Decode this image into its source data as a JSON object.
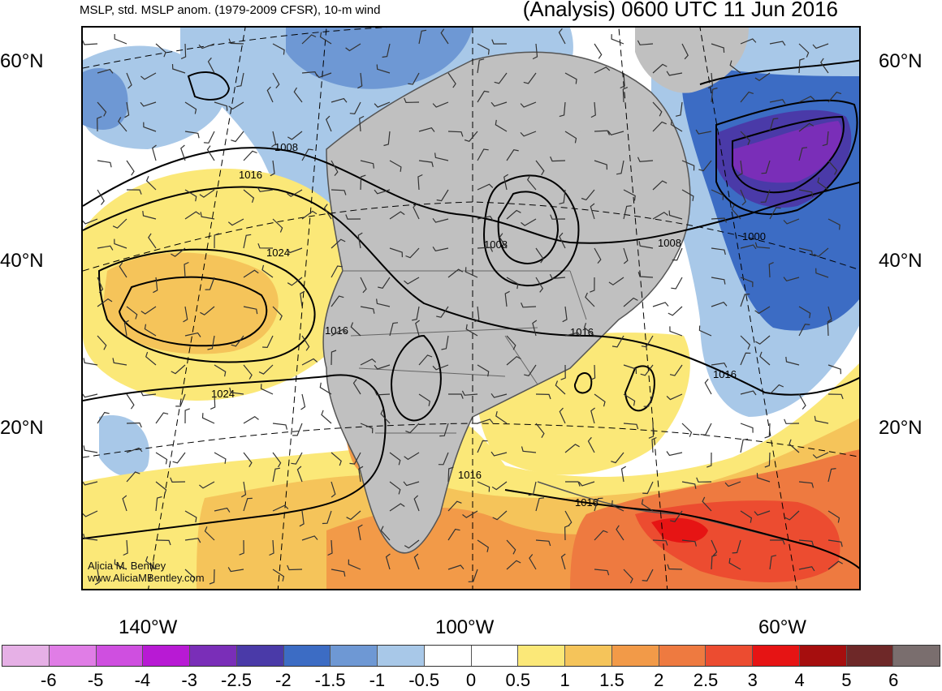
{
  "header": {
    "left_title": "MSLP, std. MSLP anom. (1979-2009 CFSR), 10-m wind",
    "right_title": "(Analysis) 0600 UTC 11 Jun 2016"
  },
  "lat_labels": [
    "60°N",
    "40°N",
    "20°N"
  ],
  "lon_labels": [
    "140°W",
    "100°W",
    "60°W"
  ],
  "isobars": [
    "1008",
    "1016",
    "1024",
    "1008",
    "1008",
    "1000",
    "1016",
    "1016",
    "1016",
    "1016",
    "1024",
    "1016"
  ],
  "credit": {
    "name": "Alicia M. Bentley",
    "site": "www.AliciaMBentley.com"
  },
  "colorbar": {
    "labels": [
      "-6",
      "-5",
      "-4",
      "-3",
      "-2.5",
      "-2",
      "-1.5",
      "-1",
      "-0.5",
      "0",
      "0.5",
      "1",
      "1.5",
      "2",
      "2.5",
      "3",
      "4",
      "5",
      "6"
    ],
    "colors": [
      "#e6b0e6",
      "#e07de6",
      "#cf4fe0",
      "#b81ad4",
      "#7a2eb8",
      "#4a3aa8",
      "#3c6cc4",
      "#6e98d4",
      "#a8c8e8",
      "#ffffff",
      "#ffffff",
      "#fbe878",
      "#f5c45a",
      "#f29a48",
      "#ee7a40",
      "#ec4c30",
      "#e61414",
      "#a60e0e",
      "#6e2828",
      "#7a6e6e"
    ]
  },
  "colors": {
    "land": "#c0c0c0",
    "coast": "#555555",
    "contour": "#000000"
  }
}
